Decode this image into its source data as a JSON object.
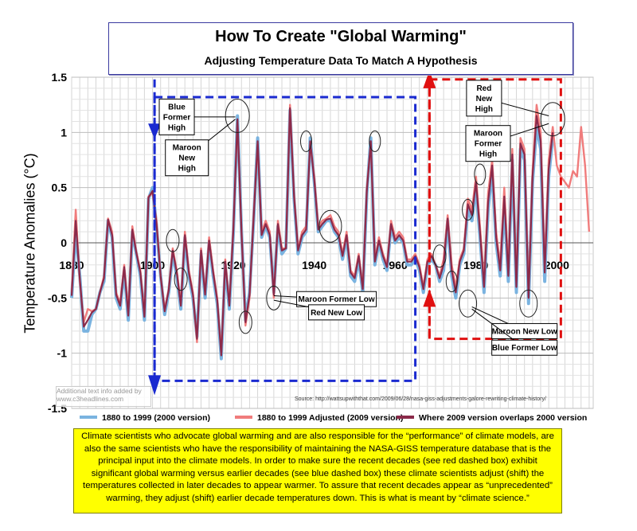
{
  "title": "How To Create \"Global Warming\"",
  "subtitle": "Adjusting Temperature Data To Match A Hypothesis",
  "ylabel": "Temperature Anomalies (°C)",
  "watermark": "Additional text info added by www.c3headlines.com",
  "source": "Source: http://wattsupwiththat.com/2009/06/28/nasa-giss-adjustments-galore-rewriting-climate-history/",
  "note": "Climate scientists who advocate global warming and are also responsible for the “performance” of climate models, are also the same scientists who have the responsibility of maintaining the NASA-GISS temperature database that is the principal input into the climate models. In order to make sure the recent decades (see red dashed box) exhibit significant global warming versus earlier decades (see blue dashed box) these climate scientists adjust (shift) the temperatures collected in later decades to appear warmer. To assure that recent decades appear as “unprecedented” warming, they adjust (shift) earlier decade temperatures down. This is what is meant by “climate science.”",
  "colors": {
    "blue": "#7ab3e0",
    "red": "#f07c7c",
    "maroon": "#8b2a4a",
    "blueBox": "#1a2ad0",
    "redBox": "#e01010",
    "note_bg": "#ffff00"
  },
  "chart_data": {
    "type": "line",
    "xlim": [
      1880,
      2009
    ],
    "ylim": [
      -1.5,
      1.5
    ],
    "x_ticks": [
      1880,
      1900,
      1920,
      1940,
      1960,
      1980,
      2000
    ],
    "y_ticks": [
      "1.5",
      "1",
      "0.5",
      "0",
      "-0.5",
      "-1",
      "-1.5"
    ],
    "grid": true,
    "legend_position": "bottom",
    "series": [
      {
        "name": "1880 to 1999 (2000 version)",
        "x_start": 1880,
        "values": [
          -0.5,
          0.1,
          -0.3,
          -0.8,
          -0.8,
          -0.65,
          -0.6,
          -0.45,
          -0.35,
          0.2,
          0.05,
          -0.5,
          -0.6,
          -0.25,
          -0.7,
          0.1,
          -0.1,
          -0.3,
          -0.7,
          0.4,
          0.5,
          0.15,
          -0.3,
          -0.65,
          -0.45,
          -0.1,
          -0.3,
          -0.6,
          0.05,
          -0.3,
          -0.5,
          -0.85,
          -0.1,
          -0.5,
          0,
          -0.3,
          -0.55,
          -1.05,
          -0.2,
          -0.6,
          0.1,
          1.15,
          0.1,
          -0.7,
          -0.45,
          0.2,
          0.95,
          0.05,
          0.15,
          0.05,
          -0.45,
          0.15,
          -0.1,
          -0.05,
          1.2,
          0.4,
          -0.1,
          0.05,
          0.1,
          0.95,
          0.55,
          0.1,
          0.15,
          0.2,
          0.2,
          0.1,
          0.05,
          -0.15,
          0.05,
          -0.3,
          -0.35,
          -0.15,
          -0.45,
          0.45,
          0.95,
          -0.2,
          0,
          -0.15,
          -0.25,
          0.15,
          0,
          0.05,
          0,
          -0.2,
          -0.2,
          -0.15,
          -0.25,
          -0.45,
          -0.2,
          -0.15,
          -0.2,
          -0.35,
          -0.25,
          0.2,
          -0.3,
          -0.5,
          -0.2,
          -0.1,
          0.3,
          0.2,
          0.5,
          0.05,
          -0.45,
          0.3,
          0.65,
          0,
          -0.3,
          0.35,
          -0.35,
          0.75,
          -0.45,
          0.85,
          0.75,
          -0.55,
          0.55,
          1.05,
          0.85,
          -0.35,
          0.6,
          0.95
        ]
      },
      {
        "name": "1880 to 1999 Adjusted (2009 version)",
        "x_start": 1880,
        "values": [
          -0.45,
          0.3,
          -0.35,
          -0.72,
          -0.6,
          -0.62,
          -0.6,
          -0.45,
          -0.3,
          0.22,
          0.1,
          -0.45,
          -0.55,
          -0.2,
          -0.62,
          0.15,
          -0.08,
          -0.25,
          -0.65,
          0.42,
          0.45,
          0.2,
          -0.3,
          -0.6,
          -0.42,
          -0.05,
          -0.25,
          -0.55,
          0.1,
          -0.25,
          -0.45,
          -0.9,
          -0.05,
          -0.45,
          0.05,
          -0.25,
          -0.5,
          -1.0,
          -0.15,
          -0.55,
          0.15,
          1.1,
          0.1,
          -0.75,
          -0.5,
          0.25,
          0.9,
          0.1,
          0.2,
          0.1,
          -0.5,
          0.2,
          -0.05,
          -0.05,
          1.25,
          0.45,
          -0.05,
          0.1,
          0.15,
          0.9,
          0.6,
          0.15,
          0.2,
          0.22,
          0.25,
          0.15,
          0.1,
          -0.1,
          0.1,
          -0.25,
          -0.3,
          -0.1,
          -0.4,
          0.5,
          0.9,
          -0.15,
          0.05,
          -0.1,
          -0.2,
          0.2,
          0.05,
          0.1,
          0.05,
          -0.15,
          -0.15,
          -0.1,
          -0.2,
          -0.4,
          -0.15,
          -0.1,
          -0.2,
          -0.3,
          -0.15,
          0.25,
          -0.2,
          -0.4,
          -0.15,
          -0.05,
          0.4,
          0.3,
          0.6,
          0.15,
          -0.35,
          0.45,
          0.75,
          0.1,
          -0.2,
          0.5,
          -0.25,
          0.85,
          -0.35,
          0.95,
          0.85,
          -0.45,
          0.65,
          1.25,
          1.0,
          -0.2,
          0.75,
          1.05,
          0.7,
          0.6,
          0.55,
          0.5,
          0.65,
          0.6,
          1.05,
          0.7,
          0.1
        ]
      },
      {
        "name": "Where 2009 version overlaps 2000 version",
        "x_start": 1880,
        "values": [
          -0.48,
          0.2,
          -0.32,
          -0.76,
          -0.7,
          -0.63,
          -0.6,
          -0.45,
          -0.32,
          0.21,
          0.07,
          -0.47,
          -0.57,
          -0.22,
          -0.66,
          0.12,
          -0.09,
          -0.27,
          -0.67,
          0.41,
          0.47,
          0.17,
          -0.3,
          -0.62,
          -0.43,
          -0.07,
          -0.27,
          -0.57,
          0.07,
          -0.27,
          -0.47,
          -0.87,
          -0.07,
          -0.47,
          0.02,
          -0.27,
          -0.52,
          -1.02,
          -0.17,
          -0.57,
          0.12,
          1.12,
          0.1,
          -0.72,
          -0.47,
          0.22,
          0.92,
          0.07,
          0.17,
          0.07,
          -0.47,
          0.17,
          -0.07,
          -0.05,
          1.22,
          0.42,
          -0.07,
          0.07,
          0.12,
          0.92,
          0.57,
          0.12,
          0.17,
          0.21,
          0.22,
          0.12,
          0.07,
          -0.12,
          0.07,
          -0.27,
          -0.32,
          -0.12,
          -0.42,
          0.47,
          0.92,
          -0.17,
          0.02,
          -0.12,
          -0.22,
          0.17,
          0.02,
          0.07,
          0.02,
          -0.17,
          -0.17,
          -0.12,
          -0.22,
          -0.42,
          -0.17,
          -0.12,
          -0.2,
          -0.32,
          -0.2,
          0.22,
          -0.25,
          -0.45,
          -0.17,
          -0.07,
          0.35,
          0.25,
          0.55,
          0.1,
          -0.4,
          0.37,
          0.7,
          0.05,
          -0.25,
          0.42,
          -0.3,
          0.8,
          -0.4,
          0.9,
          0.8,
          -0.5,
          0.6,
          1.15,
          0.92,
          -0.27,
          0.67,
          1.0
        ]
      }
    ],
    "annotations": [
      {
        "id": "blue-former-high",
        "text": [
          "Blue",
          "Former",
          "High"
        ]
      },
      {
        "id": "maroon-new-high",
        "text": [
          "Maroon",
          "New",
          "High"
        ]
      },
      {
        "id": "red-new-high",
        "text": [
          "Red",
          "New",
          "High"
        ]
      },
      {
        "id": "maroon-former-high",
        "text": [
          "Maroon",
          "Former",
          "High"
        ]
      },
      {
        "id": "maroon-former-low",
        "text": [
          "Maroon Former Low"
        ]
      },
      {
        "id": "red-new-low",
        "text": [
          "Red New Low"
        ]
      },
      {
        "id": "maroon-new-low",
        "text": [
          "Maroon New Low"
        ]
      },
      {
        "id": "blue-former-low",
        "text": [
          "Blue Former Low"
        ]
      }
    ]
  }
}
